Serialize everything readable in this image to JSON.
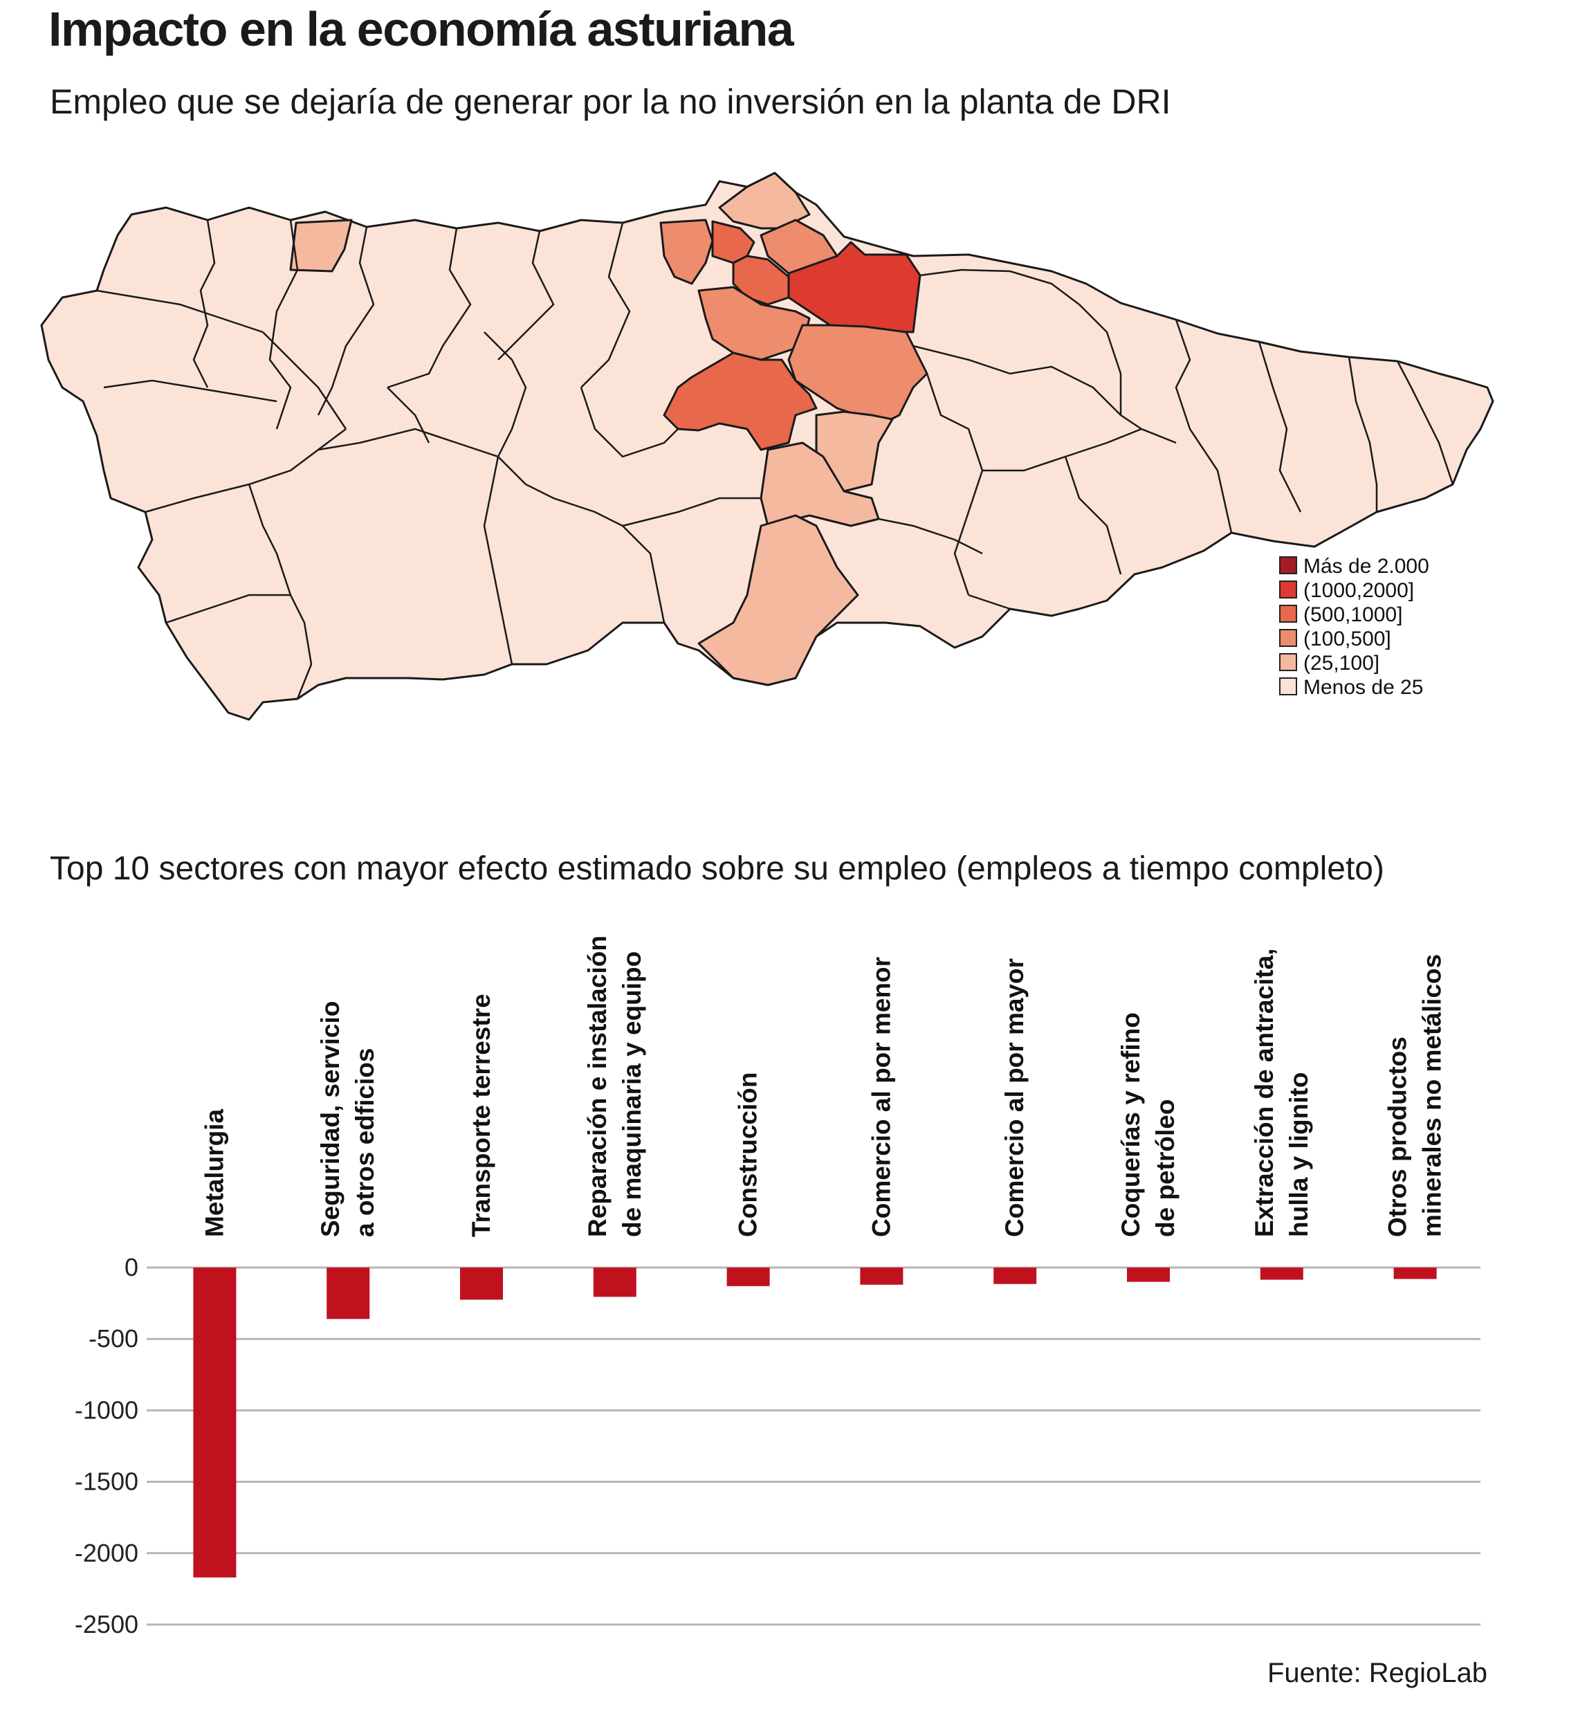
{
  "header": {
    "title": "Impacto en la economía asturiana",
    "subtitle": "Empleo que se dejaría de generar por la no inversión en la planta de DRI"
  },
  "map": {
    "legend": [
      {
        "label": "Más de 2.000",
        "color": "#a51b24"
      },
      {
        "label": "(1000,2000]",
        "color": "#dd3a30"
      },
      {
        "label": "(500,1000]",
        "color": "#e8684c"
      },
      {
        "label": "(100,500]",
        "color": "#ee8c6e"
      },
      {
        "label": "(25,100]",
        "color": "#f5b9a0"
      },
      {
        "label": "Menos de 25",
        "color": "#fce3d8"
      }
    ]
  },
  "chart_title": "Top 10 sectores con mayor efecto estimado sobre su empleo (empleos a tiempo completo)",
  "chart_data": {
    "type": "bar",
    "categories": [
      [
        "Metalurgia"
      ],
      [
        "Seguridad, servicio",
        "a otros edficios"
      ],
      [
        "Transporte terrestre"
      ],
      [
        "Reparación e instalación",
        "de maquinaria y equipo"
      ],
      [
        "Construcción"
      ],
      [
        "Comercio al por menor"
      ],
      [
        "Comercio al por mayor"
      ],
      [
        "Coquerías y refino",
        "de petróleo"
      ],
      [
        "Extracción de antracita,",
        "hulla y lignito"
      ],
      [
        "Otros productos",
        "minerales no metálicos"
      ]
    ],
    "values": [
      -2170,
      -360,
      -225,
      -205,
      -130,
      -120,
      -115,
      -100,
      -85,
      -80
    ],
    "ylim": [
      -2500,
      0
    ],
    "yticks": [
      0,
      -500,
      -1000,
      -1500,
      -2000,
      -2500
    ],
    "ytick_labels": [
      "0",
      "-500",
      "-1000",
      "-1500",
      "-2000",
      "-2500"
    ],
    "bar_color": "#c0111f",
    "grid": true
  },
  "source": "Fuente: RegioLab"
}
